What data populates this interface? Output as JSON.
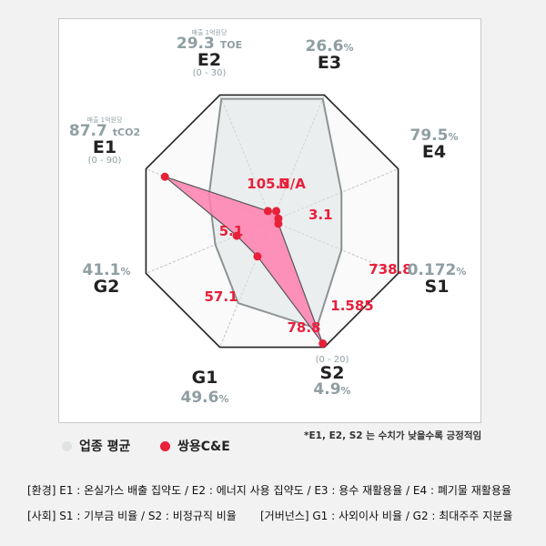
{
  "chart_data": {
    "type": "radar",
    "axes": [
      {
        "code": "E2",
        "avg": "29.3",
        "unit": "TOE",
        "range": "(0 - 30)",
        "note": "매출 1억원당",
        "company": "N/A"
      },
      {
        "code": "E3",
        "avg": "26.6",
        "unit": "%",
        "range": "",
        "note": "",
        "company": "3.1"
      },
      {
        "code": "E4",
        "avg": "79.5",
        "unit": "%",
        "range": "",
        "note": "",
        "company": "3.1"
      },
      {
        "code": "S1",
        "avg": "0.172",
        "unit": "%",
        "range": "",
        "note": "",
        "company": "1.585"
      },
      {
        "code": "S2",
        "avg": "4.9",
        "unit": "%",
        "range": "(0 - 20)",
        "note": "",
        "company": "5.1"
      },
      {
        "code": "G1",
        "avg": "49.6",
        "unit": "%",
        "range": "",
        "note": "",
        "company": "57.1"
      },
      {
        "code": "G2",
        "avg": "41.1",
        "unit": "%",
        "range": "",
        "note": "",
        "company": "78.8"
      },
      {
        "code": "E1",
        "avg": "87.7",
        "unit": "tCO2",
        "range": "(0 - 90)",
        "note": "매출 1억원당",
        "company": "738.8"
      }
    ],
    "company_labels": [
      "105.3",
      "N/A",
      "3.1",
      "738.8",
      "1.585",
      "78.8",
      "57.1",
      "5.1"
    ],
    "series": [
      {
        "name": "업종 평균",
        "color": "#dfe3e3",
        "scaled": [
          0.97,
          0.55,
          0.55,
          0.85,
          0.65,
          0.45,
          0.5,
          0.97
        ]
      },
      {
        "name": "쌍용C&E",
        "color": "#ff7fae",
        "scaled": [
          0.08,
          0.05,
          0.05,
          0.97,
          0.28,
          0.28,
          0.85,
          0.08
        ]
      }
    ],
    "grid_levels": 5,
    "marker_color": "#e8203a"
  },
  "legend": {
    "avg": "업종 평균",
    "company": "쌍용C&E"
  },
  "footnote": "*E1, E2, S2 는 수치가 낮을수록 긍정적임",
  "definitions": {
    "env": "[환경] E1 : 온실가스 배출 집약도 / E2 : 에너지 사용 집약도 / E3 : 용수 재활용율 / E4 : 폐기물 재활용율",
    "social": "[사회] S1 : 기부금 비율 / S2 : 비정규직 비율",
    "gov": "[거버넌스] G1 : 사외이사 비율 / G2 : 최대주주 지분율"
  }
}
